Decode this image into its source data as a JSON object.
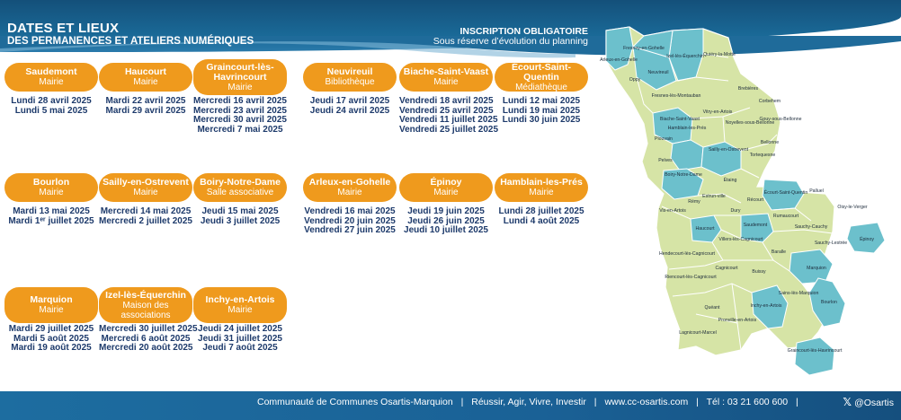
{
  "header": {
    "title": "DATES ET LIEUX",
    "subtitle": "DES PERMANENCES ET ATELIERS NUMÉRIQUES",
    "note_line1": "INSCRIPTION OBLIGATOIRE",
    "note_line2": "Sous réserve d’évolution du planning"
  },
  "locations": [
    {
      "name": "Saudemont",
      "venue": "Mairie",
      "dates": [
        "Lundi 28 avril 2025",
        "Lundi 5 mai 2025"
      ]
    },
    {
      "name": "Haucourt",
      "venue": "Mairie",
      "dates": [
        "Mardi 22 avril 2025",
        "Mardi 29 avril 2025"
      ]
    },
    {
      "name": "Graincourt-lès-Havrincourt",
      "venue": "Mairie",
      "dates": [
        "Mercredi 16 avril 2025",
        "Mercredi 23 avril 2025",
        "Mercredi 30 avril 2025",
        "Mercredi 7 mai 2025"
      ]
    },
    {
      "name": "Neuvireuil",
      "venue": "Bibliothèque",
      "dates": [
        "Jeudi 17 avril 2025",
        "Jeudi 24 avril 2025"
      ]
    },
    {
      "name": "Biache-Saint-Vaast",
      "venue": "Mairie",
      "dates": [
        "Vendredi 18 avril 2025",
        "Vendredi 25 avril 2025",
        "Vendredi 11 juillet 2025",
        "Vendredi 25 juillet 2025"
      ]
    },
    {
      "name": "Écourt-Saint-Quentin",
      "venue": "Médiathèque",
      "dates": [
        "Lundi 12 mai 2025",
        "Lundi 19 mai 2025",
        "Lundi 30 juin 2025"
      ]
    },
    {
      "name": "Bourlon",
      "venue": "Mairie",
      "dates": [
        "Mardi 13 mai 2025",
        "Mardi 1ᵉʳ juillet 2025"
      ]
    },
    {
      "name": "Sailly-en-Ostrevent",
      "venue": "Mairie",
      "dates": [
        "Mercredi 14 mai 2025",
        "Mercredi 2 juillet 2025"
      ]
    },
    {
      "name": "Boiry-Notre-Dame",
      "venue": "Salle associative",
      "dates": [
        "Jeudi 15 mai 2025",
        "Jeudi 3 juillet 2025"
      ]
    },
    {
      "name": "Arleux-en-Gohelle",
      "venue": "Mairie",
      "dates": [
        "Vendredi 16 mai 2025",
        "Vendredi 20 juin 2025",
        "Vendredi 27 juin 2025"
      ]
    },
    {
      "name": "Épinoy",
      "venue": "Mairie",
      "dates": [
        "Jeudi 19 juin 2025",
        "Jeudi 26 juin 2025",
        "Jeudi 10 juillet 2025"
      ]
    },
    {
      "name": "Hamblain-les-Prés",
      "venue": "Mairie",
      "dates": [
        "Lundi 28 juillet 2025",
        "Lundi 4 août 2025"
      ]
    },
    {
      "name": "Marquion",
      "venue": "Mairie",
      "dates": [
        "Mardi 29 juillet 2025",
        "Mardi 5 août 2025",
        "Mardi 19 août 2025"
      ]
    },
    {
      "name": "Izel-lès-Équerchin",
      "venue": "Maison des associations",
      "dates": [
        "Mercredi 30 juillet 2025",
        "Mercredi 6 août 2025",
        "Mercredi 20 août 2025"
      ]
    },
    {
      "name": "Inchy-en-Artois",
      "venue": "Mairie",
      "dates": [
        "Jeudi 24 juillet 2025",
        "Jeudi 31 juillet 2025",
        "Jeudi 7 août 2025"
      ]
    }
  ],
  "map": {
    "highlight_color": "#6cc0cc",
    "base_color": "#d6e4a6",
    "labels": [
      "Fresnoy-en-Gohelle",
      "Arleux-en-Gohelle",
      "Izel-lès-Équerchin",
      "Quiéry-la-Motte",
      "Neuvireuil",
      "Oppy",
      "Brebières",
      "Corbehem",
      "Fresnes-lès-Montauban",
      "Vitry-en-Artois",
      "Biache-Saint-Vaast",
      "Noyelles-sous-Bellonne",
      "Gouy-sous-Bellonne",
      "Plouvain",
      "Hamblain-les-Prés",
      "Bellonne",
      "Pelves",
      "Sailly-en-Ostrevent",
      "Tortequesne",
      "Boiry-Notre-Dame",
      "Étaing",
      "Écourt-Saint-Quentin",
      "Palluel",
      "Estrun-ville",
      "Rémy",
      "Dury",
      "Oisy-le-Verger",
      "Vis-en-Artois",
      "Récourt",
      "Haucourt",
      "Saudemont",
      "Rumaucourt",
      "Sauchy-Cauchy",
      "Villers-lès-Cagnicourt",
      "Sauchy-Lestrée",
      "Épinoy",
      "Baralle",
      "Hendecourt-lès-Cagnicourt",
      "Cagnicourt",
      "Marquion",
      "Buissy",
      "Riencourt-lès-Cagnicourt",
      "Sains-lès-Marquion",
      "Bourlon",
      "Quéant",
      "Inchy-en-Artois",
      "Pronville-en-Artois",
      "Lagnicourt-Marcel",
      "Graincourt-lès-Havrincourt"
    ]
  },
  "footer": {
    "organization": "Communauté de Communes Osartis-Marquion",
    "slogan": "Réussir, Agir, Vivre, Investir",
    "website": "www.cc-osartis.com",
    "phone": "Tél : 03 21 600 600",
    "x_handle": "@Osartis"
  }
}
